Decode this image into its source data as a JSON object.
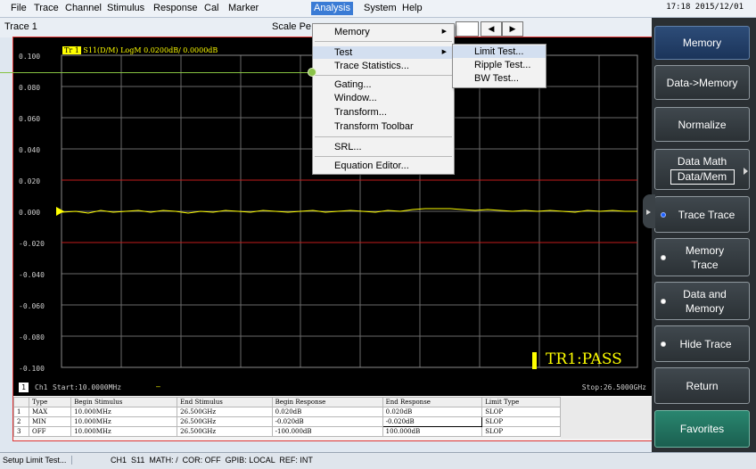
{
  "menubar": {
    "items": [
      "File",
      "Trace",
      "Channel",
      "Stimulus",
      "Response",
      "Cal",
      "Marker",
      "Analysis",
      "System",
      "Help"
    ],
    "active": "Analysis",
    "datetime": "17:18 2015/12/01"
  },
  "tracebar": {
    "trace": "Trace 1",
    "scale_text": "Scale Pe"
  },
  "plot": {
    "trace_tag": "Tr 1",
    "trace_info": "S11(D/M) LogM 0.0200dB/ 0.0000dB",
    "y_labels": [
      "0.100",
      "0.080",
      "0.060",
      "0.040",
      "0.020",
      "0.000",
      "-0.020",
      "-0.040",
      "-0.060",
      "-0.080",
      "-0.100"
    ],
    "pass_text": "TR1:PASS"
  },
  "channel_line": {
    "number": "1",
    "ch": "Ch1",
    "start": "Start:10.0000MHz",
    "stop": "Stop:26.5000GHz"
  },
  "limit_table": {
    "headers": [
      "Type",
      "Begin Stimulus",
      "End Stimulus",
      "Begin Response",
      "End Response",
      "Limit Type"
    ],
    "rows": [
      {
        "index": "1",
        "cells": [
          "MAX",
          "10.000MHz",
          "26.500GHz",
          "0.020dB",
          "0.020dB",
          "SLOP"
        ]
      },
      {
        "index": "2",
        "cells": [
          "MIN",
          "10.000MHz",
          "26.500GHz",
          "-0.020dB",
          "-0.020dB",
          "SLOP"
        ]
      },
      {
        "index": "3",
        "cells": [
          "OFF",
          "10.000MHz",
          "26.500GHz",
          "-100.000dB",
          "100.000dB",
          "SLOP"
        ]
      }
    ]
  },
  "status": {
    "message": "Setup Limit Test...",
    "info": "CH1  S11  MATH: /  COR: OFF  GPIB: LOCAL  REF: INT"
  },
  "analysis_menu": [
    {
      "label": "Memory",
      "submenu": true
    },
    {
      "label": "Test",
      "submenu": true,
      "highlighted": true
    },
    {
      "label": "Trace Statistics..."
    },
    {
      "label": "Gating..."
    },
    {
      "label": "Window..."
    },
    {
      "label": "Transform..."
    },
    {
      "label": "Transform Toolbar"
    },
    {
      "label": "SRL..."
    },
    {
      "label": "Equation Editor..."
    }
  ],
  "test_submenu": [
    {
      "label": "Limit Test...",
      "highlighted": true
    },
    {
      "label": "Ripple Test..."
    },
    {
      "label": "BW Test..."
    }
  ],
  "softkeys": {
    "header": "Memory",
    "data_to_memory": "Data->Memory",
    "normalize": "Normalize",
    "data_math": "Data Math",
    "data_math_value": "Data/Mem",
    "trace_trace": "Trace Trace",
    "memory_trace_1": "Memory",
    "memory_trace_2": "Trace",
    "data_and_memory_1": "Data and",
    "data_and_memory_2": "Memory",
    "hide_trace": "Hide Trace",
    "return": "Return",
    "favorites": "Favorites"
  },
  "colors": {
    "menu_active": "#3a7bd5",
    "trace": "#ffff00",
    "limit_line": "#d22222",
    "softkey_bg": "#2a2f33",
    "favorites": "#29866f",
    "callout": "#8bc34a"
  }
}
